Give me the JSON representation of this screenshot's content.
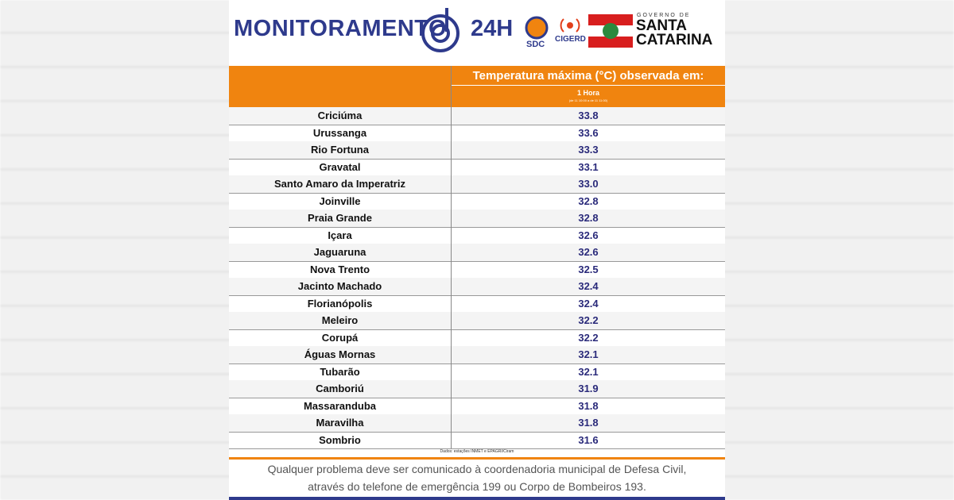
{
  "header": {
    "title": "MONITORAMENTO",
    "title_suffix": "24H",
    "logos": [
      "SDC",
      "CIGERD"
    ],
    "gov_small": "GOVERNO DE",
    "gov_line1": "SANTA",
    "gov_line2": "CATARINA"
  },
  "table": {
    "heading": "Temperatura máxima (°C) observada em:",
    "column": "1 Hora",
    "column_note": "(de 11 10:00 a de 11 11:00)",
    "rows": [
      [
        "Criciúma",
        "33.8"
      ],
      [
        "Urussanga",
        "33.6"
      ],
      [
        "Rio Fortuna",
        "33.3"
      ],
      [
        "Gravatal",
        "33.1"
      ],
      [
        "Santo Amaro da Imperatriz",
        "33.0"
      ],
      [
        "Joinville",
        "32.8"
      ],
      [
        "Praia Grande",
        "32.8"
      ],
      [
        "Içara",
        "32.6"
      ],
      [
        "Jaguaruna",
        "32.6"
      ],
      [
        "Nova Trento",
        "32.5"
      ],
      [
        "Jacinto Machado",
        "32.4"
      ],
      [
        "Florianópolis",
        "32.4"
      ],
      [
        "Meleiro",
        "32.2"
      ],
      [
        "Corupá",
        "32.2"
      ],
      [
        "Águas Mornas",
        "32.1"
      ],
      [
        "Tubarão",
        "32.1"
      ],
      [
        "Camboriú",
        "31.9"
      ],
      [
        "Massaranduba",
        "31.8"
      ],
      [
        "Maravilha",
        "31.8"
      ],
      [
        "Sombrio",
        "31.6"
      ]
    ],
    "source": "Dados: estações INMET e EPAGRI/Ciram"
  },
  "footer": {
    "line1": "Qualquer problema deve ser comunicado à coordenadoria municipal de Defesa Civil,",
    "line2": "através do telefone de emergência 199 ou Corpo de Bombeiros 193."
  }
}
